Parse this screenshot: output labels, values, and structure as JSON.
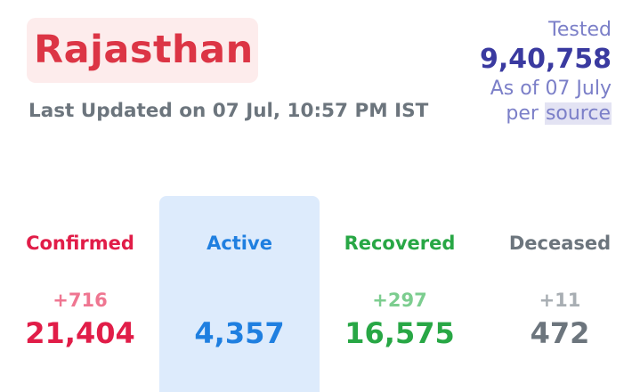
{
  "header": {
    "state_name": "Rajasthan",
    "last_updated": "Last Updated on 07 Jul, 10:57 PM IST"
  },
  "tested": {
    "label": "Tested",
    "value": "9,40,758",
    "as_of": "As of 07 July",
    "per_prefix": "per",
    "source_link": "source"
  },
  "stats": [
    {
      "label": "Confirmed",
      "delta": "+716",
      "value": "21,404",
      "color": "#e11d48"
    },
    {
      "label": "Active",
      "delta": "",
      "value": "4,357",
      "color": "#1f7fe0"
    },
    {
      "label": "Recovered",
      "delta": "+297",
      "value": "16,575",
      "color": "#28a745"
    },
    {
      "label": "Deceased",
      "delta": "+11",
      "value": "472",
      "color": "#6c757d"
    }
  ],
  "colors": {
    "state_name": "#dc3545",
    "state_name_bg": "#fdecec",
    "tested": "#7b7fc8",
    "tested_value": "#3a3aa0",
    "active_bg": "#ddebfc"
  }
}
